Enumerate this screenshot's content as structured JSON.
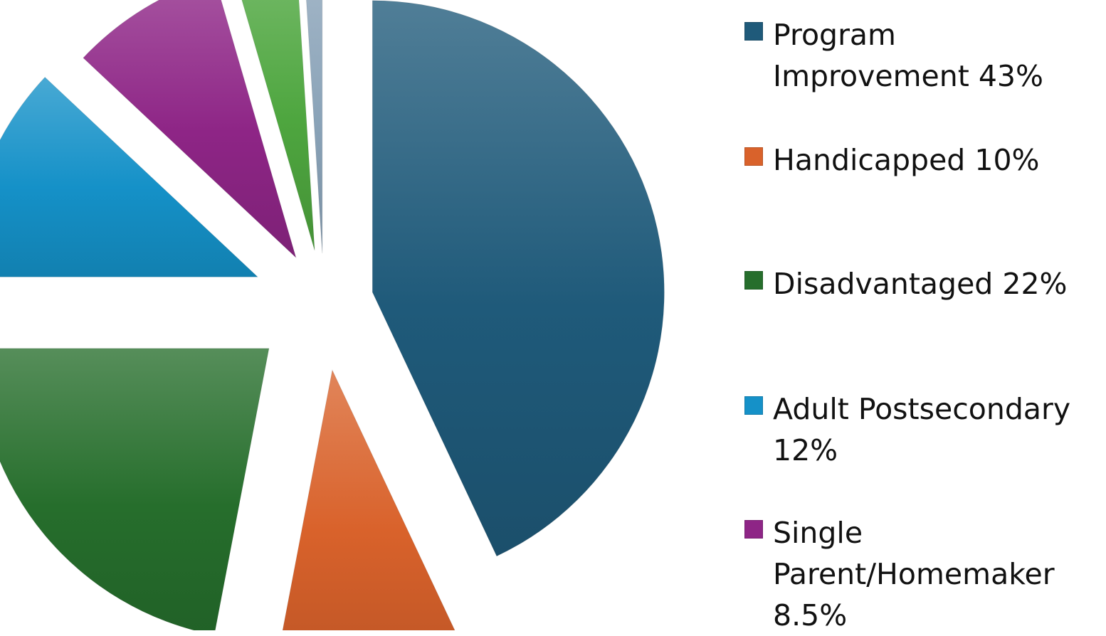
{
  "chart_data": {
    "type": "pie",
    "exploded": true,
    "slices": [
      {
        "label": "Program Improvement 43%",
        "value": 43,
        "color": "#1f5a7a"
      },
      {
        "label": "Handicapped 10%",
        "value": 10,
        "color": "#d9622b"
      },
      {
        "label": "Disadvantaged 22%",
        "value": 22,
        "color": "#266e2c"
      },
      {
        "label": "Adult Postsecondary 12%",
        "value": 12,
        "color": "#1591c8"
      },
      {
        "label": "Single Parent/Homemaker 8.5%",
        "value": 8.5,
        "color": "#8e2586"
      },
      {
        "value": 3.5,
        "color": "#4ea63f"
      },
      {
        "value": 1,
        "color": "#8aa3b8"
      }
    ],
    "legend_placement": "right"
  }
}
